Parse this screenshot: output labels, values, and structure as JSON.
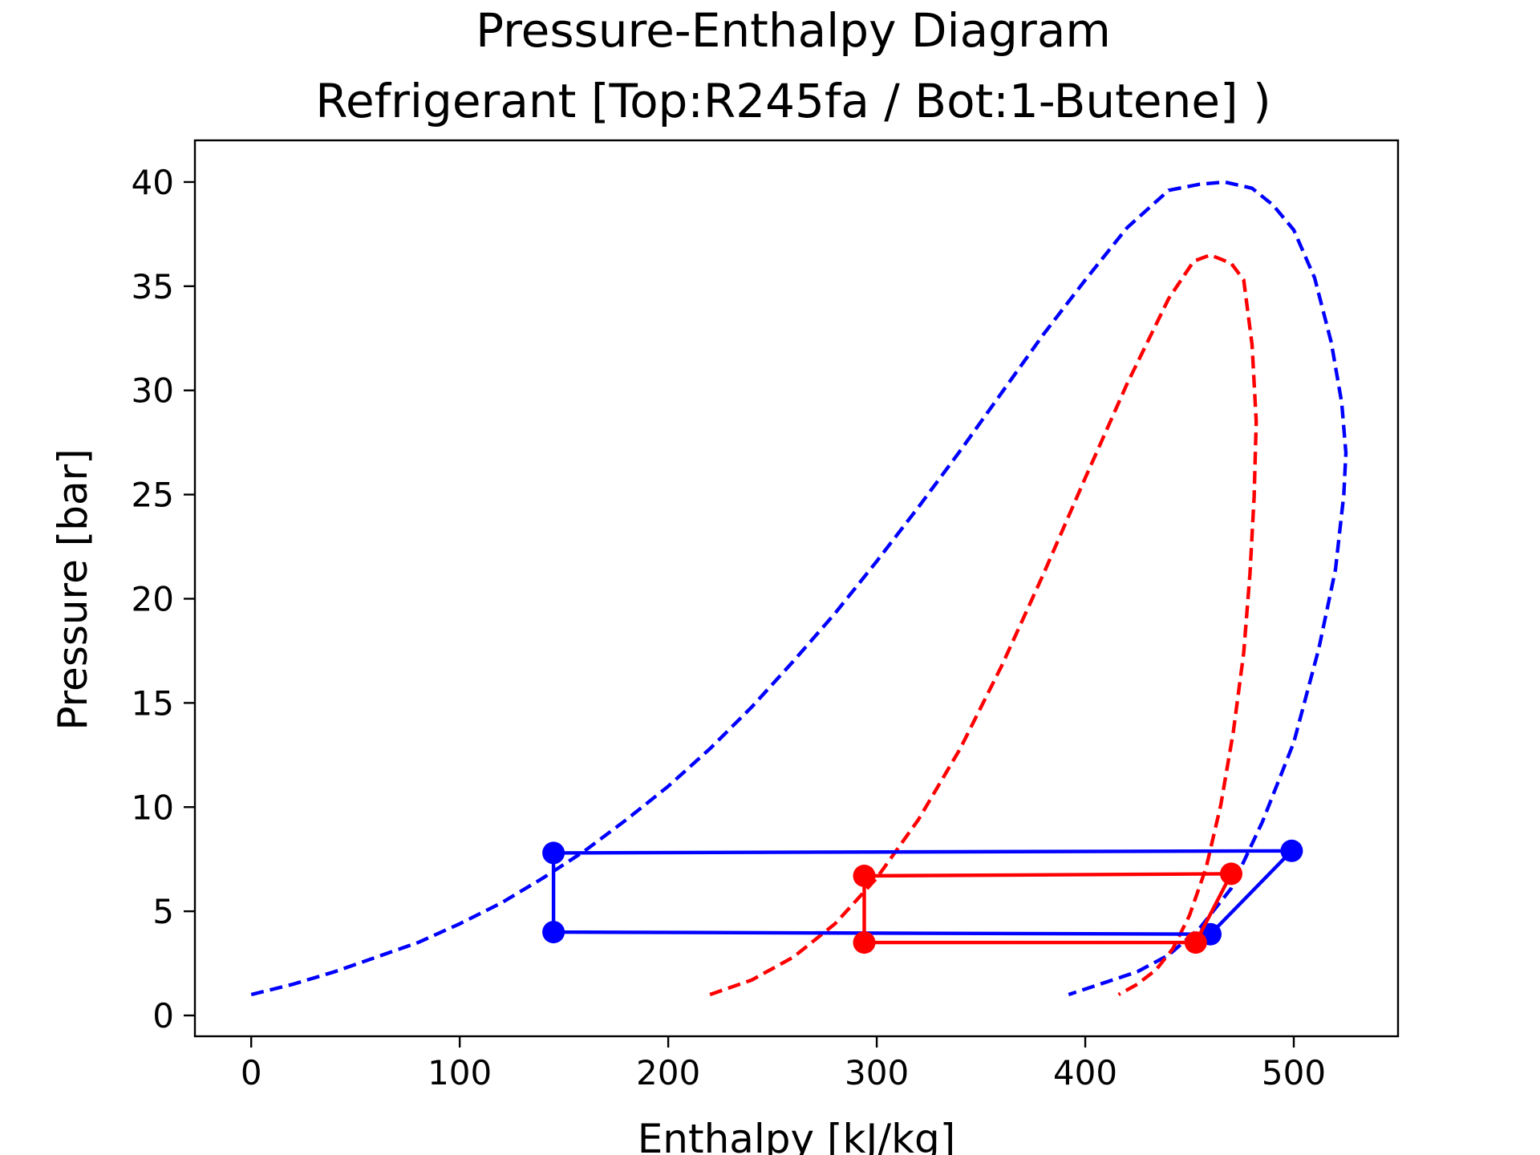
{
  "chart_data": {
    "type": "line",
    "title": "Pressure-Enthalpy Diagram",
    "subtitle": "Refrigerant [Top:R245fa / Bot:1-Butene] )",
    "xlabel": "Enthalpy [kJ/kg]",
    "ylabel": "Pressure [bar]",
    "xlim": [
      -27,
      550
    ],
    "ylim": [
      -1,
      42
    ],
    "xticks": [
      "0",
      "100",
      "200",
      "300",
      "400",
      "500"
    ],
    "yticks": [
      "0",
      "5",
      "10",
      "15",
      "20",
      "25",
      "30",
      "35",
      "40"
    ],
    "grid": false,
    "series": [
      {
        "color": "#0000ff",
        "style": "dashed",
        "x": [
          0,
          20,
          40,
          60,
          80,
          100,
          120,
          140,
          160,
          180,
          200,
          220,
          240,
          260,
          280,
          300,
          320,
          340,
          360,
          380,
          400,
          420,
          440,
          455,
          467,
          480,
          490,
          500,
          510,
          518,
          523,
          525,
          524,
          520,
          512,
          500,
          485,
          470,
          455,
          440,
          425,
          410,
          392
        ],
        "y": [
          1,
          1.5,
          2.1,
          2.8,
          3.5,
          4.4,
          5.4,
          6.6,
          7.9,
          9.4,
          11,
          12.8,
          14.8,
          17,
          19.3,
          21.8,
          24.4,
          27.1,
          29.9,
          32.7,
          35.3,
          37.8,
          39.6,
          39.9,
          40,
          39.7,
          38.9,
          37.7,
          35.4,
          32.3,
          29.4,
          27,
          25,
          21.4,
          17.6,
          13.1,
          9.3,
          6.1,
          4.2,
          2.9,
          2.1,
          1.6,
          1
        ]
      },
      {
        "color": "#ff0000",
        "style": "dashed",
        "x": [
          220,
          240,
          260,
          280,
          300,
          320,
          340,
          360,
          380,
          400,
          420,
          440,
          452,
          460,
          470,
          476,
          480,
          482,
          481,
          479,
          476,
          471,
          465,
          458,
          450,
          442,
          434,
          425,
          416
        ],
        "y": [
          1,
          1.7,
          2.8,
          4.4,
          6.6,
          9.4,
          12.8,
          16.8,
          21.2,
          25.8,
          30.3,
          34.4,
          36.2,
          36.5,
          36.1,
          35.3,
          32.2,
          28.5,
          24.9,
          21.2,
          17.4,
          13.6,
          10.1,
          7.1,
          4.8,
          3.2,
          2.2,
          1.5,
          1
        ]
      },
      {
        "color": "#0000ff",
        "style": "solid",
        "marker": "o",
        "x": [
          145,
          460,
          499,
          145,
          145
        ],
        "y": [
          4,
          3.9,
          7.9,
          7.8,
          4
        ]
      },
      {
        "color": "#ff0000",
        "style": "solid",
        "marker": "o",
        "x": [
          294,
          453,
          470,
          294,
          294
        ],
        "y": [
          3.5,
          3.5,
          6.8,
          6.7,
          3.5
        ]
      }
    ]
  }
}
